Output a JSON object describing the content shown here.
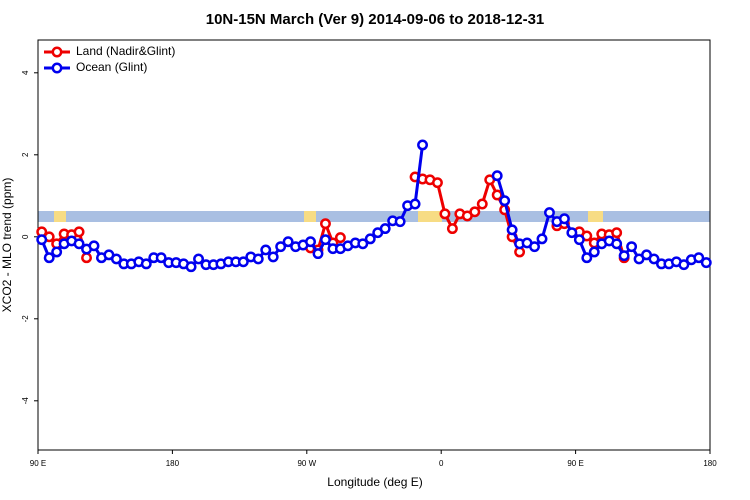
{
  "chart_data": {
    "type": "line",
    "title": "10N-15N March (Ver 9)   2014-09-06 to 2018-12-31",
    "x_label": "Longitude (deg E)",
    "y_label": "XCO2 - MLO trend (ppm)",
    "x": [
      92.5,
      97.5,
      102.5,
      107.5,
      112.5,
      117.5,
      122.5,
      127.5,
      132.5,
      137.5,
      142.5,
      147.5,
      152.5,
      157.5,
      162.5,
      167.5,
      172.5,
      177.5,
      182.5,
      187.5,
      192.5,
      197.5,
      202.5,
      207.5,
      212.5,
      217.5,
      222.5,
      227.5,
      232.5,
      237.5,
      242.5,
      247.5,
      252.5,
      257.5,
      262.5,
      267.5,
      272.5,
      277.5,
      282.5,
      287.5,
      292.5,
      297.5,
      302.5,
      307.5,
      312.5,
      317.5,
      322.5,
      327.5,
      332.5,
      337.5,
      342.5,
      347.5,
      352.5,
      357.5,
      362.5,
      367.5,
      372.5,
      377.5,
      382.5,
      387.5,
      392.5,
      397.5,
      402.5,
      407.5,
      412.5,
      417.5,
      422.5,
      427.5,
      432.5,
      437.5,
      442.5,
      447.5,
      452.5,
      457.5,
      462.5,
      467.5,
      472.5,
      477.5,
      482.5,
      487.5,
      492.5,
      497.5,
      502.5,
      507.5,
      512.5,
      517.5,
      522.5,
      527.5,
      532.5,
      537.5
    ],
    "series": [
      {
        "name": "Land (Nadir&Glint)",
        "color": "#ee0000",
        "values": [
          0.12,
          0.0,
          -0.17,
          0.07,
          0.05,
          0.12,
          -0.51,
          null,
          null,
          null,
          null,
          null,
          null,
          null,
          null,
          null,
          null,
          null,
          null,
          null,
          null,
          null,
          null,
          null,
          null,
          null,
          null,
          null,
          null,
          null,
          null,
          null,
          null,
          null,
          null,
          null,
          -0.27,
          -0.32,
          0.32,
          -0.15,
          -0.02,
          null,
          null,
          null,
          null,
          null,
          null,
          null,
          null,
          null,
          1.46,
          1.41,
          1.39,
          1.32,
          0.56,
          0.2,
          0.56,
          0.51,
          0.61,
          0.8,
          1.39,
          1.02,
          0.66,
          0.0,
          -0.37,
          null,
          null,
          null,
          null,
          0.27,
          0.32,
          null,
          0.12,
          0.02,
          -0.15,
          0.07,
          0.05,
          0.1,
          -0.51,
          null,
          null,
          null,
          null,
          null,
          null,
          null,
          null,
          null,
          null,
          null
        ]
      },
      {
        "name": "Ocean (Glint)",
        "color": "#0000ee",
        "values": [
          -0.07,
          -0.51,
          -0.37,
          -0.17,
          -0.1,
          -0.17,
          -0.3,
          -0.22,
          -0.51,
          -0.44,
          -0.54,
          -0.66,
          -0.66,
          -0.61,
          -0.66,
          -0.51,
          -0.51,
          -0.63,
          -0.63,
          -0.66,
          -0.73,
          -0.54,
          -0.68,
          -0.68,
          -0.66,
          -0.61,
          -0.61,
          -0.61,
          -0.49,
          -0.54,
          -0.32,
          -0.49,
          -0.24,
          -0.12,
          -0.24,
          -0.2,
          -0.12,
          -0.41,
          -0.07,
          -0.29,
          -0.29,
          -0.22,
          -0.15,
          -0.17,
          -0.05,
          0.1,
          0.2,
          0.39,
          0.37,
          0.76,
          0.8,
          2.24,
          null,
          null,
          null,
          null,
          null,
          null,
          null,
          null,
          null,
          1.49,
          0.88,
          0.17,
          -0.17,
          -0.15,
          -0.24,
          -0.05,
          0.59,
          0.37,
          0.44,
          0.1,
          -0.07,
          -0.51,
          -0.37,
          -0.17,
          -0.1,
          -0.17,
          -0.46,
          -0.24,
          -0.54,
          -0.44,
          -0.54,
          -0.66,
          -0.66,
          -0.61,
          -0.68,
          -0.56,
          -0.51,
          -0.63
        ]
      }
    ],
    "xlim": [
      90,
      540
    ],
    "xticks": [
      {
        "value": 90,
        "label": "90 E"
      },
      180,
      {
        "value": 270,
        "label": "90 W"
      },
      {
        "value": 360,
        "label": "0"
      },
      {
        "value": 450,
        "label": "90 E"
      },
      {
        "value": 540,
        "label": "180"
      }
    ],
    "ylim": [
      -5.2,
      4.8
    ],
    "yticks": [
      -4,
      -2,
      0,
      2,
      4
    ],
    "legend": "top-left"
  }
}
